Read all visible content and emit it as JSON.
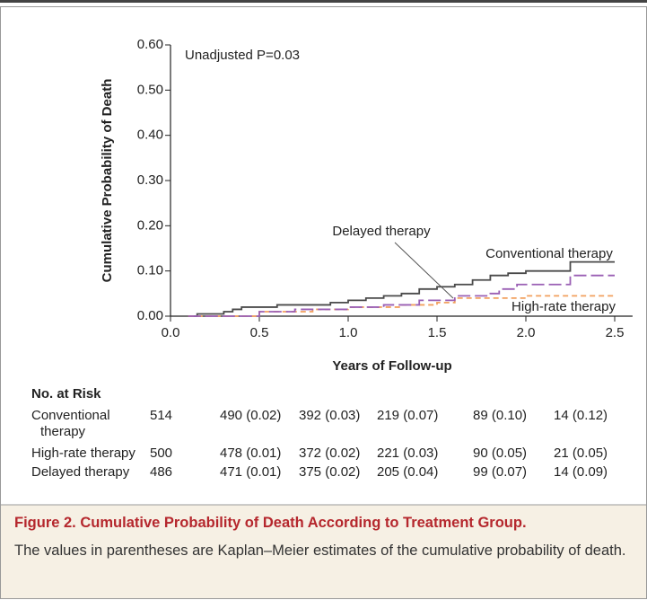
{
  "chart_data": {
    "type": "step",
    "annotation": "Unadjusted P=0.03",
    "ylabel": "Cumulative Probability of Death",
    "xlabel": "Years of Follow-up",
    "xlim": [
      0,
      2.55
    ],
    "ylim": [
      0,
      0.6
    ],
    "xticks": [
      {
        "value": 0,
        "label": "0.0"
      },
      0.5,
      {
        "value": 1,
        "label": "1.0"
      },
      1.5,
      {
        "value": 2,
        "label": "2.0"
      },
      2.5
    ],
    "yticks": [
      {
        "value": 0,
        "label": "0.00"
      },
      {
        "value": 0.1,
        "label": "0.10"
      },
      {
        "value": 0.2,
        "label": "0.20"
      },
      {
        "value": 0.3,
        "label": "0.30"
      },
      {
        "value": 0.4,
        "label": "0.40"
      },
      {
        "value": 0.5,
        "label": "0.50"
      },
      {
        "value": 0.6,
        "label": "0.60"
      }
    ],
    "series": [
      {
        "name": "Conventional therapy",
        "color": "#4a4a4a",
        "dash": "none",
        "x": [
          0.1,
          0.15,
          0.3,
          0.35,
          0.4,
          0.6,
          0.9,
          1.0,
          1.1,
          1.2,
          1.3,
          1.4,
          1.5,
          1.6,
          1.7,
          1.8,
          1.9,
          2.0,
          2.25,
          2.5
        ],
        "values": [
          0,
          0.005,
          0.01,
          0.015,
          0.02,
          0.025,
          0.03,
          0.035,
          0.04,
          0.045,
          0.05,
          0.06,
          0.065,
          0.07,
          0.08,
          0.09,
          0.095,
          0.1,
          0.12,
          0.12
        ]
      },
      {
        "name": "High-rate therapy",
        "color": "#f2a05e",
        "dash": "6 4",
        "x": [
          0.1,
          0.5,
          0.8,
          1.0,
          1.3,
          1.5,
          1.6,
          2.0,
          2.5
        ],
        "values": [
          0,
          0.01,
          0.015,
          0.02,
          0.025,
          0.03,
          0.04,
          0.045,
          0.045
        ]
      },
      {
        "name": "Delayed therapy",
        "color": "#9a5fb4",
        "dash": "14 5",
        "x": [
          0.1,
          0.5,
          0.7,
          1.0,
          1.2,
          1.4,
          1.6,
          1.8,
          1.85,
          1.95,
          2.25,
          2.5
        ],
        "values": [
          0,
          0.01,
          0.015,
          0.02,
          0.025,
          0.035,
          0.045,
          0.05,
          0.06,
          0.07,
          0.09,
          0.09
        ]
      }
    ],
    "risk_table": {
      "title": "No. at Risk",
      "rows": [
        {
          "label": "Conventional therapy",
          "cells": [
            "514",
            "490 (0.02)",
            "392 (0.03)",
            "219 (0.07)",
            "89 (0.10)",
            "14 (0.12)"
          ]
        },
        {
          "label": "High-rate therapy",
          "cells": [
            "500",
            "478 (0.01)",
            "372 (0.02)",
            "221 (0.03)",
            "90 (0.05)",
            "21 (0.05)"
          ]
        },
        {
          "label": "Delayed therapy",
          "cells": [
            "486",
            "471 (0.01)",
            "375 (0.02)",
            "205 (0.04)",
            "99 (0.07)",
            "14 (0.09)"
          ]
        }
      ]
    }
  },
  "caption": {
    "label": "Figure 2.",
    "title": "Cumulative Probability of Death According to Treatment Group.",
    "text": "The values in parentheses are Kaplan–Meier estimates of the cumulative probability of death."
  }
}
